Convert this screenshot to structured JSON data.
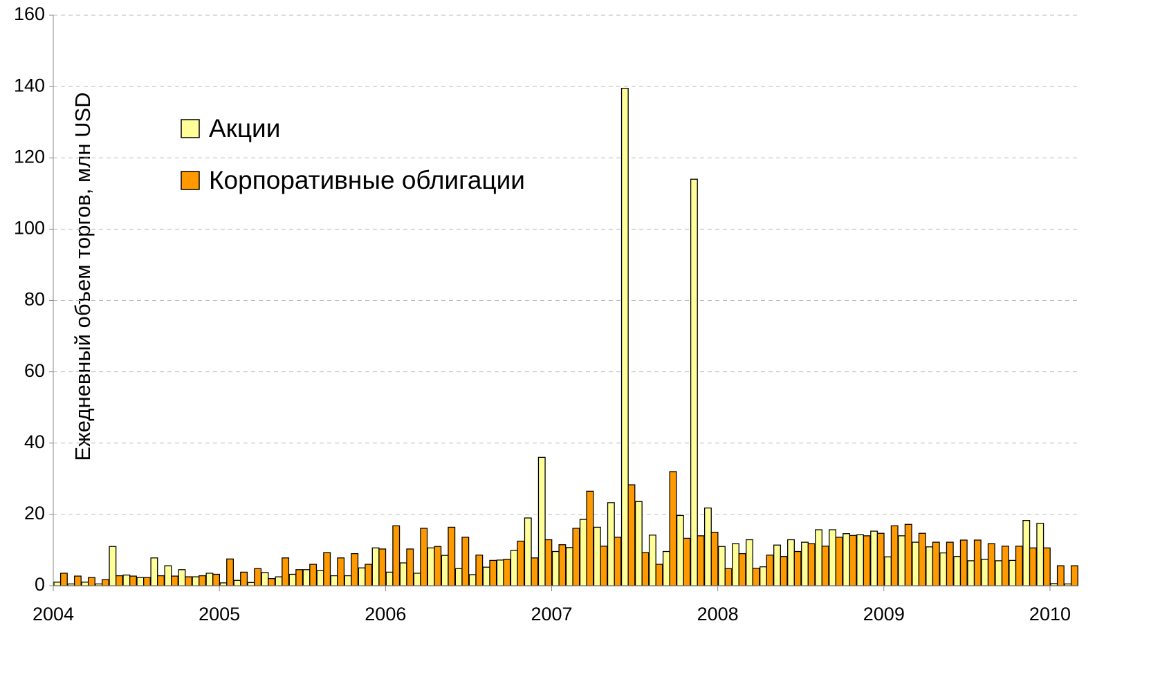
{
  "chart_data": {
    "type": "bar",
    "y_label": "Ежедневный объем торгов, млн USD",
    "categories": [
      "2004",
      null,
      null,
      null,
      null,
      null,
      null,
      null,
      null,
      null,
      null,
      null,
      "2005",
      null,
      null,
      null,
      null,
      null,
      null,
      null,
      null,
      null,
      null,
      null,
      "2006",
      null,
      null,
      null,
      null,
      null,
      null,
      null,
      null,
      null,
      null,
      null,
      "2007",
      null,
      null,
      null,
      null,
      null,
      null,
      null,
      null,
      null,
      null,
      null,
      "2008",
      null,
      null,
      null,
      null,
      null,
      null,
      null,
      null,
      null,
      null,
      null,
      "2009",
      null,
      null,
      null,
      null,
      null,
      null,
      null,
      null,
      null,
      null,
      null,
      "2010",
      null
    ],
    "series": [
      {
        "name": "Акции",
        "color": "#ffff99",
        "values": [
          1,
          0.5,
          1,
          0.5,
          11,
          3,
          2.3,
          7.8,
          5.6,
          4.5,
          2.5,
          3.5,
          0.8,
          1.5,
          0.9,
          3.7,
          2.5,
          3.2,
          4.5,
          4.3,
          2.8,
          2.8,
          5,
          10.6,
          3.8,
          6.4,
          3.5,
          10.6,
          8.5,
          4.8,
          3.1,
          5.2,
          7.2,
          9.9,
          19,
          36,
          9.6,
          10.7,
          18.6,
          16.4,
          23.3,
          139.5,
          23.6,
          14.2,
          9.6,
          19.7,
          114,
          21.8,
          11,
          11.8,
          12.9,
          5.3,
          11.4,
          12.9,
          12.2,
          15.7,
          15.7,
          14.6,
          14.3,
          15.3,
          8.1,
          14,
          12.2,
          10.9,
          9.2,
          8.2,
          7,
          7.4,
          7,
          7.1,
          18.3,
          17.5,
          0.6,
          0.5
        ]
      },
      {
        "name": "Корпоративные облигации",
        "color": "#ff9900",
        "values": [
          3.5,
          2.7,
          2.3,
          1.7,
          2.8,
          2.7,
          2.3,
          2.8,
          2.7,
          2.5,
          2.8,
          3.2,
          7.5,
          3.8,
          4.8,
          2,
          7.8,
          4.5,
          6,
          9.3,
          7.8,
          9,
          6,
          10.3,
          16.8,
          10.3,
          16.1,
          11,
          16.4,
          13.6,
          8.6,
          7.1,
          7.4,
          12.5,
          7.8,
          12.9,
          11.5,
          16.1,
          26.5,
          11.1,
          13.6,
          28.3,
          9.3,
          6,
          32,
          13.3,
          14,
          15,
          4.8,
          9,
          4.9,
          8.6,
          8.2,
          9.6,
          11.8,
          11.1,
          13.6,
          14.1,
          14,
          14.7,
          16.8,
          17.2,
          14.7,
          12.2,
          12.2,
          12.8,
          12.8,
          11.8,
          11.1,
          11.1,
          10.6,
          10.6,
          5.6,
          5.6
        ]
      }
    ],
    "ylim": [
      0,
      160
    ],
    "yticks": [
      0,
      20,
      40,
      60,
      80,
      100,
      120,
      140,
      160
    ],
    "grid": true,
    "legend": "upper left"
  }
}
